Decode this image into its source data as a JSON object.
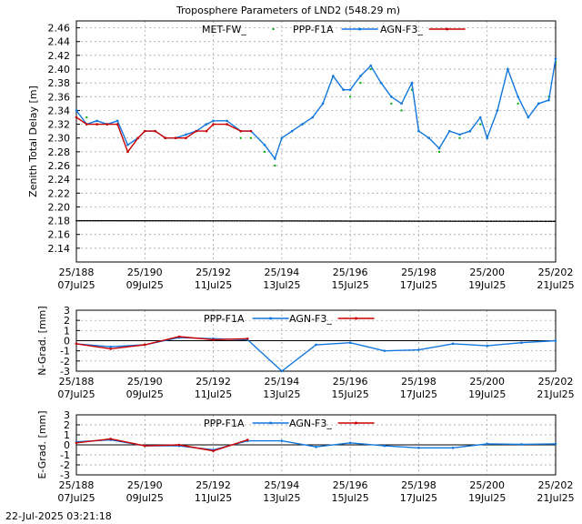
{
  "title": "Troposphere Parameters of LND2 (548.29 m)",
  "timestamp": "22-Jul-2025 03:21:18",
  "x_ticks": [
    {
      "top": "25/188",
      "bottom": "07Jul25"
    },
    {
      "top": "25/190",
      "bottom": "09Jul25"
    },
    {
      "top": "25/192",
      "bottom": "11Jul25"
    },
    {
      "top": "25/194",
      "bottom": "13Jul25"
    },
    {
      "top": "25/196",
      "bottom": "15Jul25"
    },
    {
      "top": "25/198",
      "bottom": "17Jul25"
    },
    {
      "top": "25/200",
      "bottom": "19Jul25"
    },
    {
      "top": "25/202",
      "bottom": "21Jul25"
    }
  ],
  "colors": {
    "met": "#00aa00",
    "ppp": "#1177dd",
    "agn": "#cc0000",
    "ref": "#000000"
  },
  "chart_data": [
    {
      "type": "line",
      "ylabel": "Zenith Total Delay [m]",
      "xlim": [
        188,
        202
      ],
      "ylim": [
        2.12,
        2.47
      ],
      "yticks": [
        "2.14",
        "2.16",
        "2.18",
        "2.20",
        "2.22",
        "2.24",
        "2.26",
        "2.28",
        "2.30",
        "2.32",
        "2.34",
        "2.36",
        "2.38",
        "2.40",
        "2.42",
        "2.44",
        "2.46"
      ],
      "grid": true,
      "legend": "top",
      "series": [
        {
          "name": "MET-FW_",
          "style": "points",
          "x": [
            188.0,
            188.3,
            188.6,
            188.9,
            189.2,
            189.5,
            189.8,
            190.0,
            190.3,
            190.6,
            190.9,
            191.2,
            191.5,
            191.8,
            192.0,
            192.4,
            192.8,
            193.1,
            193.5,
            193.8,
            194.0,
            194.3,
            194.6,
            194.9,
            195.2,
            195.5,
            195.8,
            196.0,
            196.3,
            196.6,
            196.9,
            197.2,
            197.5,
            197.8,
            198.0,
            198.3,
            198.6,
            198.9,
            199.2,
            199.5,
            199.8,
            200.0,
            200.3,
            200.6,
            200.9,
            201.2,
            201.5,
            201.8,
            202.0
          ],
          "y": [
            2.34,
            2.33,
            2.32,
            2.32,
            2.32,
            2.28,
            2.3,
            2.31,
            2.31,
            2.3,
            2.3,
            2.3,
            2.31,
            2.31,
            2.32,
            2.32,
            2.3,
            2.3,
            2.28,
            2.26,
            2.3,
            2.31,
            2.32,
            2.33,
            2.35,
            2.39,
            2.37,
            2.36,
            2.38,
            2.4,
            2.38,
            2.35,
            2.34,
            2.37,
            2.31,
            2.3,
            2.28,
            2.31,
            2.3,
            2.31,
            2.32,
            2.3,
            2.34,
            2.4,
            2.35,
            2.33,
            2.35,
            2.36,
            2.41
          ]
        },
        {
          "name": "PPP-F1A",
          "style": "line",
          "x": [
            188.0,
            188.3,
            188.6,
            188.9,
            189.2,
            189.5,
            189.8,
            190.0,
            190.3,
            190.6,
            190.9,
            191.2,
            191.5,
            191.8,
            192.0,
            192.4,
            192.8,
            193.1,
            193.5,
            193.8,
            194.0,
            194.3,
            194.6,
            194.9,
            195.2,
            195.5,
            195.8,
            196.0,
            196.3,
            196.6,
            196.9,
            197.2,
            197.5,
            197.8,
            198.0,
            198.3,
            198.6,
            198.9,
            199.2,
            199.5,
            199.8,
            200.0,
            200.3,
            200.6,
            200.9,
            201.2,
            201.5,
            201.8,
            202.0
          ],
          "y": [
            2.34,
            2.32,
            2.325,
            2.32,
            2.325,
            2.29,
            2.3,
            2.31,
            2.31,
            2.3,
            2.3,
            2.305,
            2.31,
            2.32,
            2.325,
            2.325,
            2.31,
            2.31,
            2.29,
            2.27,
            2.3,
            2.31,
            2.32,
            2.33,
            2.35,
            2.39,
            2.37,
            2.37,
            2.39,
            2.405,
            2.38,
            2.36,
            2.35,
            2.38,
            2.31,
            2.3,
            2.285,
            2.31,
            2.305,
            2.31,
            2.33,
            2.3,
            2.34,
            2.4,
            2.36,
            2.33,
            2.35,
            2.355,
            2.415
          ]
        },
        {
          "name": "AGN-F3_",
          "style": "line",
          "x": [
            188.0,
            188.3,
            188.6,
            188.9,
            189.2,
            189.5,
            189.8,
            190.0,
            190.3,
            190.6,
            190.9,
            191.2,
            191.5,
            191.8,
            192.0,
            192.4,
            192.8,
            193.1
          ],
          "y": [
            2.33,
            2.32,
            2.32,
            2.32,
            2.32,
            2.28,
            2.3,
            2.31,
            2.31,
            2.3,
            2.3,
            2.3,
            2.31,
            2.31,
            2.32,
            2.32,
            2.31,
            2.31
          ]
        },
        {
          "name": "",
          "style": "line",
          "x": [
            188,
            202
          ],
          "y": [
            2.18,
            2.179
          ]
        }
      ]
    },
    {
      "type": "line",
      "ylabel": "N-Grad. [mm]",
      "xlim": [
        188,
        202
      ],
      "ylim": [
        -3,
        3
      ],
      "yticks": [
        "3",
        "2",
        "1",
        "0",
        "-1",
        "-2",
        "-3"
      ],
      "grid": true,
      "legend": "top",
      "series": [
        {
          "name": "PPP-F1A",
          "x": [
            188,
            189,
            190,
            191,
            192,
            193,
            194,
            195,
            196,
            197,
            198,
            199,
            200,
            201,
            202
          ],
          "y": [
            -0.3,
            -0.6,
            -0.4,
            0.3,
            0.2,
            0.1,
            -3.0,
            -0.4,
            -0.2,
            -1.0,
            -0.9,
            -0.3,
            -0.5,
            -0.2,
            0.0
          ]
        },
        {
          "name": "AGN-F3_",
          "x": [
            188,
            189,
            190,
            191,
            192,
            193
          ],
          "y": [
            -0.3,
            -0.8,
            -0.4,
            0.4,
            0.1,
            0.2
          ]
        }
      ]
    },
    {
      "type": "line",
      "ylabel": "E-Grad. [mm]",
      "xlim": [
        188,
        202
      ],
      "ylim": [
        -3,
        3
      ],
      "yticks": [
        "3",
        "2",
        "1",
        "0",
        "-1",
        "-2",
        "-3"
      ],
      "grid": true,
      "legend": "top",
      "series": [
        {
          "name": "PPP-F1A",
          "x": [
            188,
            189,
            190,
            191,
            192,
            193,
            194,
            195,
            196,
            197,
            198,
            199,
            200,
            201,
            202
          ],
          "y": [
            0.3,
            0.5,
            -0.1,
            -0.1,
            -0.5,
            0.4,
            0.4,
            -0.2,
            0.2,
            -0.1,
            -0.3,
            -0.3,
            0.1,
            0.05,
            0.1
          ]
        },
        {
          "name": "AGN-F3_",
          "x": [
            188,
            189,
            190,
            191,
            192,
            193
          ],
          "y": [
            0.2,
            0.6,
            -0.1,
            0.0,
            -0.6,
            0.5
          ]
        }
      ]
    }
  ]
}
